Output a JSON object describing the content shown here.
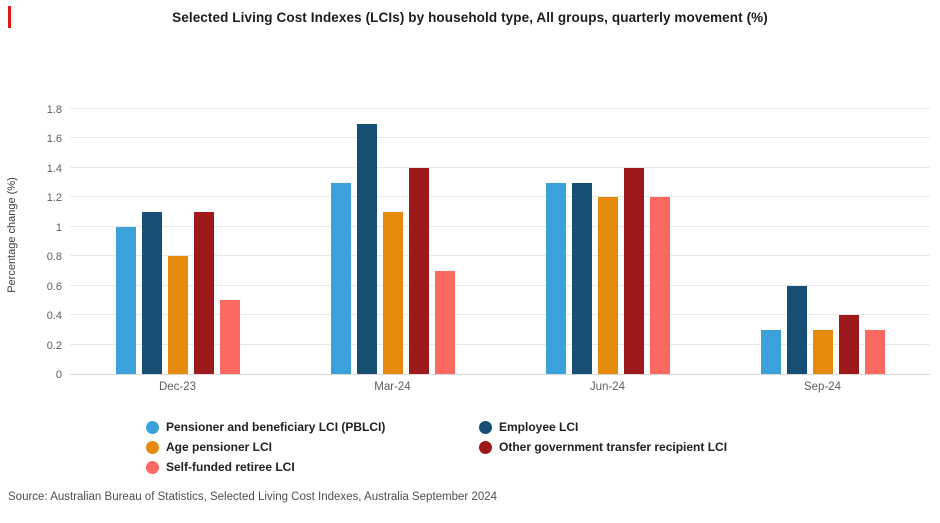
{
  "chart_data": {
    "type": "bar",
    "title": "Selected Living Cost Indexes (LCIs) by household type, All groups, quarterly movement (%)",
    "xlabel": "",
    "ylabel": "Percentage change (%)",
    "categories": [
      "Dec-23",
      "Mar-24",
      "Jun-24",
      "Sep-24"
    ],
    "series": [
      {
        "name": "Pensioner and beneficiary LCI (PBLCI)",
        "color": "#3BA1DB",
        "values": [
          1.0,
          1.3,
          1.3,
          0.3
        ]
      },
      {
        "name": "Employee LCI",
        "color": "#174F74",
        "values": [
          1.1,
          1.7,
          1.3,
          0.6
        ]
      },
      {
        "name": "Age pensioner LCI",
        "color": "#E68A0D",
        "values": [
          0.8,
          1.1,
          1.2,
          0.3
        ]
      },
      {
        "name": "Other government transfer recipient LCI",
        "color": "#9E191C",
        "values": [
          1.1,
          1.4,
          1.4,
          0.4
        ]
      },
      {
        "name": "Self-funded retiree LCI",
        "color": "#FB6962",
        "values": [
          0.5,
          0.7,
          1.2,
          0.3
        ]
      }
    ],
    "ylim": [
      0,
      1.8
    ],
    "ytick_step": 0.2,
    "ytick_labels": [
      "0",
      "0.2",
      "0.4",
      "0.6",
      "0.8",
      "1",
      "1.2",
      "1.4",
      "1.6",
      "1.8"
    ],
    "grid": true,
    "legend_position": "bottom"
  },
  "legend": {
    "columns": [
      [
        {
          "label": "Pensioner and beneficiary LCI (PBLCI)",
          "color": "#3BA1DB"
        },
        {
          "label": "Age pensioner LCI",
          "color": "#E68A0D"
        },
        {
          "label": "Self-funded retiree LCI",
          "color": "#FB6962"
        }
      ],
      [
        {
          "label": "Employee LCI",
          "color": "#174F74"
        },
        {
          "label": "Other government transfer recipient LCI",
          "color": "#9E191C"
        }
      ]
    ]
  },
  "source_note": "Source: Australian Bureau of Statistics, Selected Living Cost Indexes, Australia September 2024",
  "decorations": {
    "margin_mark_color": "#E21717"
  }
}
